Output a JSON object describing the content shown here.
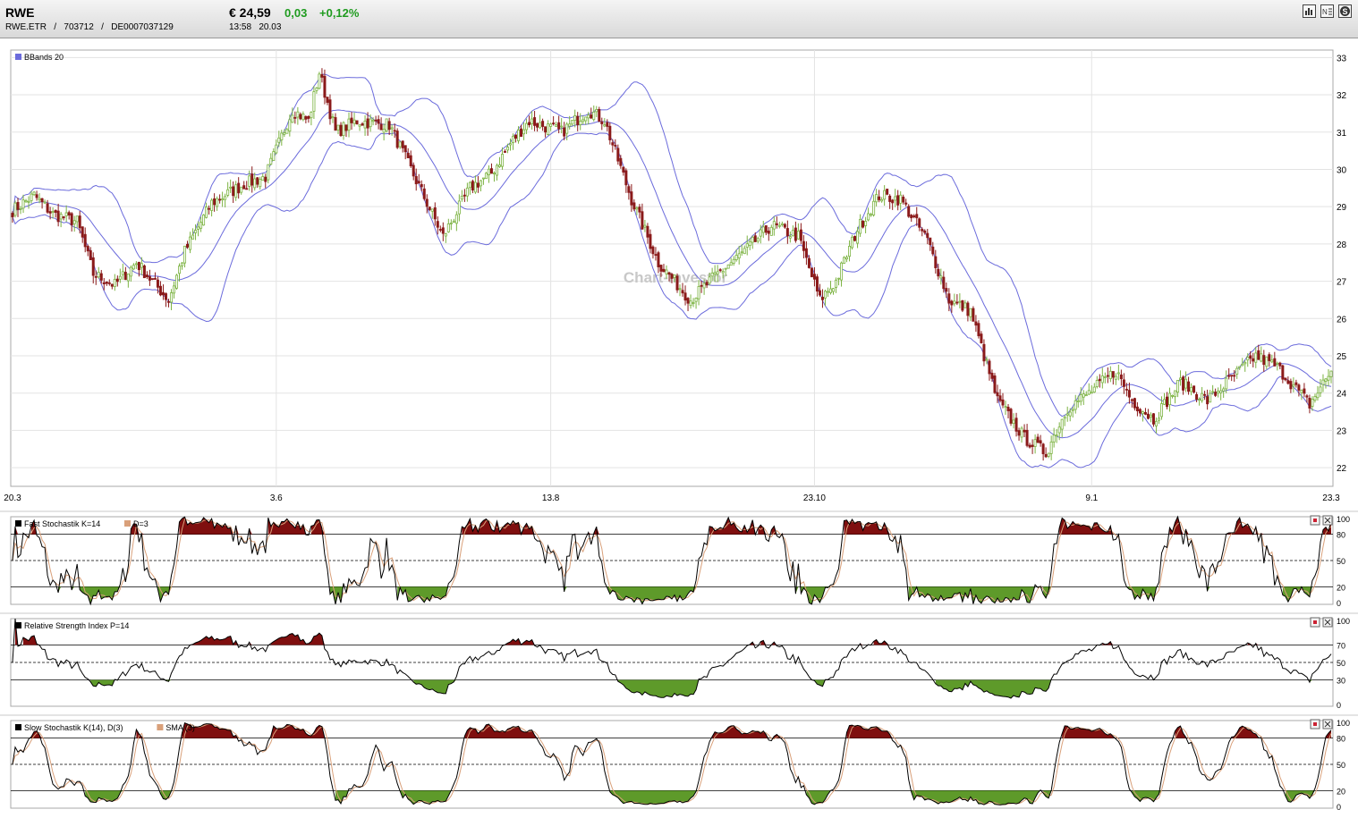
{
  "header": {
    "symbol": "RWE",
    "exchange": "RWE.ETR",
    "wkn": "703712",
    "isin": "DE0007037129",
    "separator": "/",
    "price": "€ 24,59",
    "change": "0,03",
    "change_pct": "+0,12%",
    "time": "13:58",
    "date": "20.03",
    "toolbar_icons": [
      "bar-chart-icon",
      "news-icon",
      "s-icon"
    ]
  },
  "watermark": "Chart-Investor",
  "colors": {
    "bull": "#7cb342",
    "bear": "#8b1a1a",
    "band": "#6b6bdc",
    "grid": "#e3e3e3",
    "fill_high": "#7f0f0f",
    "fill_low": "#5e9a2a",
    "d_line": "#d9a07a"
  },
  "chart_data": [
    {
      "type": "candlestick",
      "title": "BBands 20",
      "xlabel": "",
      "ylabel": "",
      "x_ticks": [
        "20.3",
        "3.6",
        "13.8",
        "23.10",
        "9.1",
        "23.3"
      ],
      "y_ticks": [
        "22",
        "23",
        "24",
        "25",
        "26",
        "27",
        "28",
        "29",
        "30",
        "31",
        "32",
        "33"
      ],
      "ylim": [
        21.5,
        33.2
      ],
      "grid": true,
      "close_anchors": [
        [
          0,
          28.9
        ],
        [
          8,
          29.3
        ],
        [
          15,
          28.8
        ],
        [
          24,
          28.6
        ],
        [
          30,
          27.2
        ],
        [
          38,
          26.9
        ],
        [
          46,
          27.5
        ],
        [
          52,
          27.0
        ],
        [
          58,
          26.5
        ],
        [
          64,
          27.8
        ],
        [
          74,
          29.1
        ],
        [
          86,
          29.6
        ],
        [
          94,
          29.8
        ],
        [
          104,
          31.6
        ],
        [
          110,
          31.3
        ],
        [
          114,
          32.6
        ],
        [
          120,
          31.0
        ],
        [
          128,
          31.3
        ],
        [
          140,
          31.2
        ],
        [
          148,
          30.0
        ],
        [
          160,
          28.2
        ],
        [
          170,
          29.5
        ],
        [
          178,
          29.9
        ],
        [
          186,
          30.8
        ],
        [
          192,
          31.3
        ],
        [
          204,
          31.0
        ],
        [
          214,
          31.6
        ],
        [
          220,
          31.3
        ],
        [
          230,
          29.2
        ],
        [
          240,
          27.5
        ],
        [
          246,
          27.0
        ],
        [
          252,
          26.5
        ],
        [
          262,
          27.2
        ],
        [
          272,
          27.8
        ],
        [
          282,
          28.5
        ],
        [
          292,
          28.2
        ],
        [
          300,
          26.5
        ],
        [
          306,
          27.0
        ],
        [
          314,
          28.4
        ],
        [
          322,
          29.3
        ],
        [
          330,
          29.2
        ],
        [
          340,
          28.1
        ],
        [
          348,
          26.5
        ],
        [
          356,
          26.2
        ],
        [
          366,
          23.8
        ],
        [
          376,
          22.8
        ],
        [
          384,
          22.4
        ],
        [
          392,
          23.6
        ],
        [
          400,
          24.0
        ],
        [
          410,
          24.6
        ],
        [
          416,
          23.8
        ],
        [
          424,
          23.3
        ],
        [
          434,
          24.3
        ],
        [
          444,
          23.8
        ],
        [
          456,
          24.6
        ],
        [
          462,
          25.0
        ],
        [
          470,
          24.7
        ],
        [
          476,
          24.2
        ],
        [
          482,
          23.7
        ],
        [
          490,
          24.6
        ]
      ],
      "current_close": 24.59
    },
    {
      "type": "line",
      "title": "Fast Stochastik K=14",
      "series_label": "D=3",
      "y_ticks": [
        "100",
        "80",
        "50",
        "20",
        "0"
      ],
      "levels": [
        80,
        50,
        20
      ],
      "ylim": [
        0,
        100
      ]
    },
    {
      "type": "line",
      "title": "Relative Strength Index P=14",
      "y_ticks": [
        "100",
        "70",
        "50",
        "30",
        "0"
      ],
      "levels": [
        70,
        50,
        30
      ],
      "ylim": [
        0,
        100
      ]
    },
    {
      "type": "line",
      "title": "Slow Stochastik K(14), D(3)",
      "series_label": "SMA (3)",
      "y_ticks": [
        "100",
        "80",
        "50",
        "20",
        "0"
      ],
      "levels": [
        80,
        50,
        20
      ],
      "ylim": [
        0,
        100
      ]
    }
  ]
}
